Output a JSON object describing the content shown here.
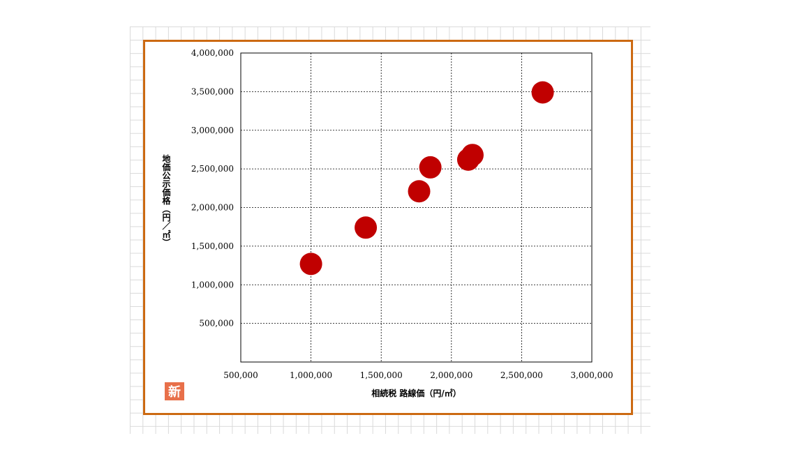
{
  "chart_data": {
    "type": "scatter",
    "title": "",
    "xlabel": "相続税 路線価（円/㎡）",
    "ylabel": "地価公示価格（円／㎡）",
    "xlim": [
      500000,
      3000000
    ],
    "ylim": [
      0,
      4000000
    ],
    "x_ticks": [
      "500,000",
      "1,000,000",
      "1,500,000",
      "2,000,000",
      "2,500,000",
      "3,000,000"
    ],
    "y_ticks": [
      "500,000",
      "1,000,000",
      "1,500,000",
      "2,000,000",
      "2,500,000",
      "3,000,000",
      "3,500,000",
      "4,000,000"
    ],
    "x_tick_values": [
      500000,
      1000000,
      1500000,
      2000000,
      2500000,
      3000000
    ],
    "y_tick_values": [
      500000,
      1000000,
      1500000,
      2000000,
      2500000,
      3000000,
      3500000,
      4000000
    ],
    "grid": true,
    "marker_color": "#c00000",
    "points": [
      {
        "x": 1000000,
        "y": 1270000
      },
      {
        "x": 1390000,
        "y": 1740000
      },
      {
        "x": 1770000,
        "y": 2210000
      },
      {
        "x": 1850000,
        "y": 2520000
      },
      {
        "x": 2120000,
        "y": 2620000
      },
      {
        "x": 2150000,
        "y": 2680000
      },
      {
        "x": 2650000,
        "y": 3490000
      }
    ]
  },
  "badge": {
    "label": "新",
    "color": "#e8704a"
  },
  "frame_color": "#cc6a12"
}
